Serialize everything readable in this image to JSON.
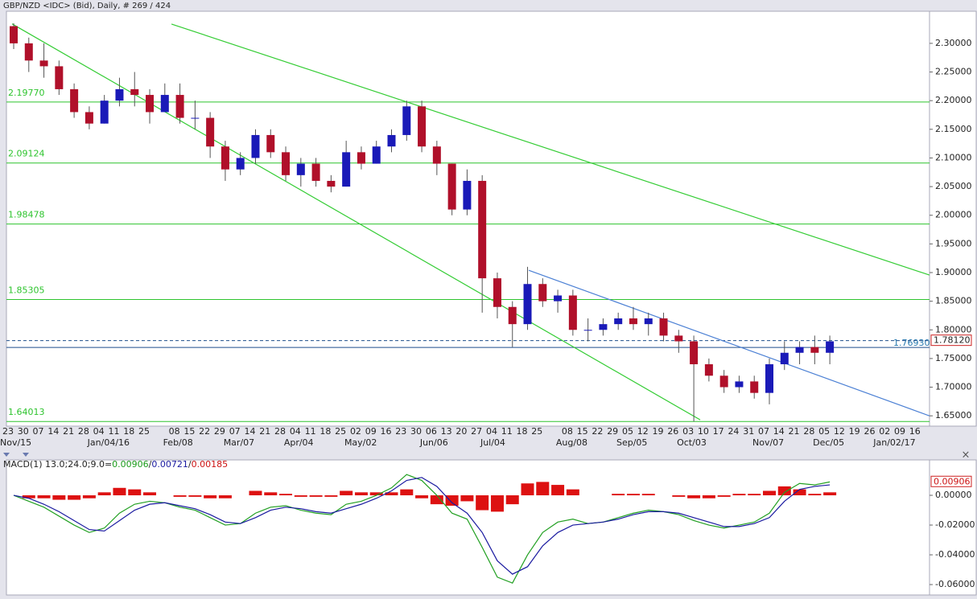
{
  "chart_data": [
    {
      "type": "candlestick",
      "title": "GBP/NZD <IDC> (Bid), Daily, # 269 / 424",
      "categories": [
        "23",
        "30",
        "07",
        "14",
        "21",
        "28",
        "04",
        "11",
        "18",
        "25",
        null,
        "08",
        "15",
        "22",
        "29",
        "07",
        "14",
        "21",
        "28",
        "04",
        "11",
        "18",
        "25",
        "02",
        "09",
        "16",
        "23",
        "30",
        "06",
        "13",
        "20",
        "27",
        "04",
        "11",
        "18",
        "25",
        null,
        "08",
        "15",
        "22",
        "29",
        "05",
        "12",
        "19",
        "26",
        "03",
        "10",
        "17",
        "24",
        "31",
        "07",
        "14",
        "21",
        "28",
        "05",
        "12",
        "19",
        "26",
        "02",
        "09",
        "16"
      ],
      "period_labels": [
        "Nov/15",
        null,
        null,
        null,
        null,
        null,
        "Jan/04/16",
        null,
        null,
        null,
        null,
        "Feb/08",
        null,
        null,
        null,
        "Mar/07",
        null,
        null,
        null,
        "Apr/04",
        null,
        null,
        null,
        "May/02",
        null,
        null,
        null,
        null,
        "Jun/06",
        null,
        null,
        null,
        "Jul/04",
        null,
        null,
        null,
        null,
        "Aug/08",
        null,
        null,
        null,
        "Sep/05",
        null,
        null,
        null,
        "Oct/03",
        null,
        null,
        null,
        null,
        "Nov/07",
        null,
        null,
        null,
        "Dec/05",
        null,
        null,
        null,
        "Jan/02/17",
        null,
        null
      ],
      "open": [
        2.33,
        2.3,
        2.27,
        2.26,
        2.22,
        2.18,
        2.16,
        2.2,
        2.22,
        2.21,
        2.18,
        2.21,
        2.17,
        2.17,
        2.12,
        2.08,
        2.1,
        2.14,
        2.11,
        2.07,
        2.09,
        2.06,
        2.05,
        2.11,
        2.09,
        2.12,
        2.14,
        2.19,
        2.12,
        2.09,
        2.01,
        2.06,
        1.89,
        1.84,
        1.81,
        1.88,
        1.85,
        1.86,
        1.8,
        1.8,
        1.81,
        1.82,
        1.81,
        1.82,
        1.79,
        1.78,
        1.74,
        1.72,
        1.7,
        1.71,
        1.69,
        1.74,
        1.76,
        1.77,
        1.76,
        null,
        null,
        null,
        null,
        null,
        null
      ],
      "high": [
        2.335,
        2.31,
        2.3,
        2.27,
        2.23,
        2.19,
        2.21,
        2.24,
        2.25,
        2.22,
        2.23,
        2.23,
        2.2,
        2.18,
        2.13,
        2.11,
        2.15,
        2.15,
        2.12,
        2.1,
        2.1,
        2.07,
        2.13,
        2.12,
        2.13,
        2.15,
        2.2,
        2.2,
        2.13,
        2.09,
        2.08,
        2.07,
        1.9,
        1.85,
        1.91,
        1.89,
        1.87,
        1.87,
        1.82,
        1.82,
        1.83,
        1.84,
        1.83,
        1.83,
        1.8,
        1.79,
        1.75,
        1.73,
        1.72,
        1.72,
        1.75,
        1.78,
        1.78,
        1.79,
        1.79,
        null,
        null,
        null,
        null,
        null,
        null
      ],
      "low": [
        2.29,
        2.25,
        2.24,
        2.21,
        2.17,
        2.15,
        2.16,
        2.19,
        2.19,
        2.16,
        2.18,
        2.16,
        2.15,
        2.1,
        2.06,
        2.07,
        2.09,
        2.1,
        2.06,
        2.05,
        2.05,
        2.04,
        2.05,
        2.08,
        2.09,
        2.11,
        2.13,
        2.11,
        2.07,
        2.0,
        2.0,
        1.83,
        1.82,
        1.77,
        1.8,
        1.84,
        1.83,
        1.79,
        1.78,
        1.79,
        1.8,
        1.8,
        1.79,
        1.78,
        1.76,
        1.64,
        1.71,
        1.69,
        1.69,
        1.68,
        1.67,
        1.73,
        1.74,
        1.74,
        1.74,
        null,
        null,
        null,
        null,
        null,
        null
      ],
      "close": [
        2.3,
        2.27,
        2.26,
        2.22,
        2.18,
        2.16,
        2.2,
        2.22,
        2.21,
        2.18,
        2.21,
        2.17,
        2.17,
        2.12,
        2.08,
        2.1,
        2.14,
        2.11,
        2.07,
        2.09,
        2.06,
        2.05,
        2.11,
        2.09,
        2.12,
        2.14,
        2.19,
        2.12,
        2.09,
        2.01,
        2.06,
        1.89,
        1.84,
        1.81,
        1.88,
        1.85,
        1.86,
        1.8,
        1.8,
        1.81,
        1.82,
        1.81,
        1.82,
        1.79,
        1.78,
        1.74,
        1.72,
        1.7,
        1.71,
        1.69,
        1.74,
        1.76,
        1.77,
        1.76,
        1.78,
        null,
        null,
        null,
        null,
        null,
        null
      ],
      "up_color": "#1a1ab8",
      "down_color": "#b0102a",
      "ylim": [
        1.632,
        2.356
      ],
      "yticks": [
        {
          "value": 2.3,
          "label": "2.30000"
        },
        {
          "value": 2.25,
          "label": "2.25000"
        },
        {
          "value": 2.2,
          "label": "2.20000"
        },
        {
          "value": 2.15,
          "label": "2.15000"
        },
        {
          "value": 2.1,
          "label": "2.10000"
        },
        {
          "value": 2.05,
          "label": "2.05000"
        },
        {
          "value": 2,
          "label": "2.00000"
        },
        {
          "value": 1.95,
          "label": "1.95000"
        },
        {
          "value": 1.9,
          "label": "1.90000"
        },
        {
          "value": 1.85,
          "label": "1.85000"
        },
        {
          "value": 1.8,
          "label": "1.80000"
        },
        {
          "value": 1.75,
          "label": "1.75000"
        },
        {
          "value": 1.7,
          "label": "1.70000"
        },
        {
          "value": 1.65,
          "label": "1.65000"
        }
      ],
      "levels": {
        "color": "#2ec42e",
        "values": [
          2.1977,
          2.09124,
          1.98478,
          1.85305,
          1.64013
        ],
        "value_labels": [
          "2.19770",
          "2.09124",
          "1.98478",
          "1.85305",
          "1.64013"
        ]
      },
      "support": {
        "value": 1.7693,
        "label": "1.76930",
        "color": "#1f4e8c"
      },
      "current_price": {
        "value": 1.7812,
        "label": "1.78120",
        "color": "#1f4e8c"
      },
      "trend_lines": [
        {
          "color": "#33cc33",
          "points": [
            [
              10.92,
              2.3337
            ],
            [
              61.07,
              1.8957
            ]
          ]
        },
        {
          "color": "#33cc33",
          "points": [
            [
              0.37,
              2.334
            ],
            [
              45.9,
              1.643
            ]
          ]
        },
        {
          "color": "#4a7fd4",
          "points": [
            [
              34.56,
              1.904
            ],
            [
              61.07,
              1.65
            ]
          ]
        }
      ]
    },
    {
      "type": "macd",
      "title_parts": [
        {
          "text": "MACD(1) 13.0;24.0;9.0=",
          "color": "#222222"
        },
        {
          "text": "0.00906",
          "color": "#1a9a1a"
        },
        {
          "text": "/",
          "color": "#222222"
        },
        {
          "text": "0.00721",
          "color": "#1a1aa0"
        },
        {
          "text": "/",
          "color": "#222222"
        },
        {
          "text": "0.00185",
          "color": "#cc1111"
        }
      ],
      "current_value": 0.00906,
      "ylim": [
        -0.067,
        0.0238
      ],
      "yticks": [
        {
          "value": 0,
          "label": "0.00000"
        },
        {
          "value": -0.02,
          "label": "-0.02000"
        },
        {
          "value": -0.04,
          "label": "-0.04000"
        },
        {
          "value": -0.06,
          "label": "-0.06000"
        }
      ],
      "series": [
        {
          "name": "MACD",
          "color": "#22a022",
          "values": [
            0,
            -0.004,
            -0.008,
            -0.014,
            -0.02,
            -0.025,
            -0.022,
            -0.012,
            -0.006,
            -0.004,
            -0.005,
            -0.008,
            -0.01,
            -0.015,
            -0.02,
            -0.019,
            -0.012,
            -0.008,
            -0.007,
            -0.01,
            -0.012,
            -0.013,
            -0.006,
            -0.004,
            0,
            0.005,
            0.014,
            0.01,
            0,
            -0.012,
            -0.016,
            -0.035,
            -0.055,
            -0.059,
            -0.04,
            -0.025,
            -0.018,
            -0.016,
            -0.019,
            -0.018,
            -0.015,
            -0.012,
            -0.01,
            -0.011,
            -0.013,
            -0.017,
            -0.02,
            -0.022,
            -0.02,
            -0.018,
            -0.012,
            0.002,
            0.008,
            0.007,
            0.009,
            null,
            null,
            null,
            null,
            null,
            null
          ]
        },
        {
          "name": "Signal",
          "color": "#1a1aa0",
          "values": [
            0,
            -0.002,
            -0.006,
            -0.011,
            -0.017,
            -0.023,
            -0.024,
            -0.017,
            -0.01,
            -0.006,
            -0.005,
            -0.007,
            -0.009,
            -0.013,
            -0.018,
            -0.019,
            -0.015,
            -0.01,
            -0.008,
            -0.009,
            -0.011,
            -0.012,
            -0.009,
            -0.006,
            -0.002,
            0.003,
            0.01,
            0.012,
            0.006,
            -0.005,
            -0.012,
            -0.025,
            -0.044,
            -0.053,
            -0.048,
            -0.034,
            -0.025,
            -0.02,
            -0.019,
            -0.018,
            -0.016,
            -0.013,
            -0.011,
            -0.011,
            -0.012,
            -0.015,
            -0.018,
            -0.021,
            -0.021,
            -0.019,
            -0.015,
            -0.004,
            0.004,
            0.006,
            0.007,
            null,
            null,
            null,
            null,
            null,
            null
          ]
        },
        {
          "name": "Histogram",
          "color": "#dd1111",
          "values": [
            0,
            -0.002,
            -0.002,
            -0.003,
            -0.003,
            -0.002,
            0.002,
            0.005,
            0.004,
            0.002,
            0,
            -0.001,
            -0.001,
            -0.002,
            -0.002,
            0,
            0.003,
            0.002,
            0.001,
            -0.001,
            -0.001,
            -0.001,
            0.003,
            0.002,
            0.002,
            0.002,
            0.004,
            -0.002,
            -0.006,
            -0.007,
            -0.004,
            -0.01,
            -0.011,
            -0.006,
            0.008,
            0.009,
            0.007,
            0.004,
            0,
            0,
            0.001,
            0.001,
            0.001,
            0,
            -0.001,
            -0.002,
            -0.002,
            -0.001,
            0.001,
            0.001,
            0.003,
            0.006,
            0.004,
            0.001,
            0.002,
            null,
            null,
            null,
            null,
            null,
            null
          ]
        }
      ]
    }
  ]
}
